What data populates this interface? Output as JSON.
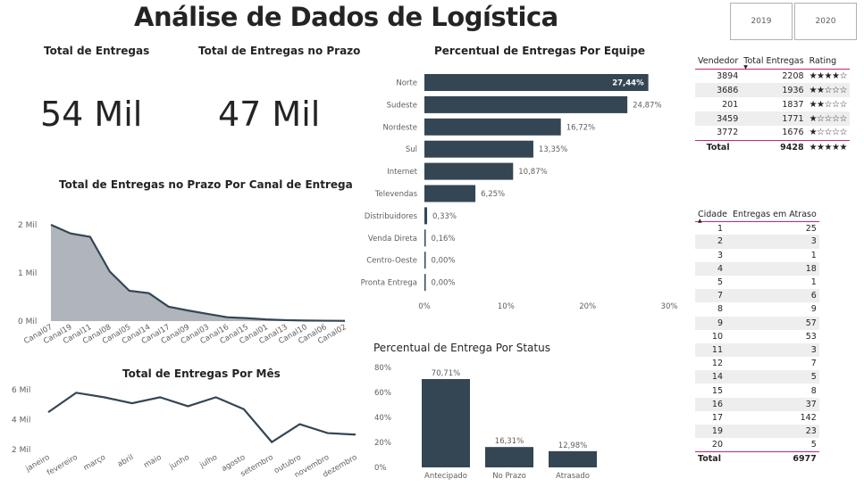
{
  "header": {
    "title": "Análise de Dados de Logística",
    "years": [
      "2019",
      "2020"
    ]
  },
  "cards": {
    "total_entregas": {
      "label": "Total de Entregas",
      "value": "54 Mil"
    },
    "entregas_prazo": {
      "label": "Total de Entregas no Prazo",
      "value": "47 Mil"
    }
  },
  "canal_chart": {
    "title": "Total de Entregas no Prazo Por Canal de Entrega"
  },
  "mes_chart": {
    "title": "Total de Entregas Por Mês"
  },
  "equipe_chart": {
    "title": "Percentual de Entregas Por Equipe"
  },
  "status_chart": {
    "title": "Percentual de Entrega Por Status"
  },
  "chart_data": [
    {
      "id": "canal",
      "type": "area",
      "title": "Total de Entregas no Prazo Por Canal de Entrega",
      "categories": [
        "Canal07",
        "Canal19",
        "Canal11",
        "Canal08",
        "Canal05",
        "Canal14",
        "Canal17",
        "Canal09",
        "Canal03",
        "Canal16",
        "Canal15",
        "Canal01",
        "Canal13",
        "Canal10",
        "Canal06",
        "Canal02"
      ],
      "values": [
        2000,
        1820,
        1750,
        1030,
        630,
        580,
        300,
        220,
        150,
        80,
        60,
        35,
        20,
        12,
        8,
        5
      ],
      "yticks": [
        "0 Mil",
        "1 Mil",
        "2 Mil"
      ],
      "ylim": [
        0,
        2000
      ],
      "color": "#b0b4bb"
    },
    {
      "id": "mes",
      "type": "line",
      "title": "Total de Entregas Por Mês",
      "categories": [
        "janeiro",
        "fevereiro",
        "março",
        "abril",
        "maio",
        "junho",
        "julho",
        "agosto",
        "setembro",
        "outubro",
        "novembro",
        "dezembro"
      ],
      "values": [
        4500,
        5800,
        5500,
        5100,
        5500,
        4900,
        5500,
        4700,
        2500,
        3700,
        3100,
        3000
      ],
      "yticks": [
        "2 Mil",
        "4 Mil",
        "6 Mil"
      ],
      "ylim": [
        2000,
        6000
      ],
      "color": "#344654"
    },
    {
      "id": "equipe",
      "type": "bar",
      "orientation": "horizontal",
      "title": "Percentual de Entregas Por Equipe",
      "categories": [
        "Norte",
        "Sudeste",
        "Nordeste",
        "Sul",
        "Internet",
        "Televendas",
        "Distribuidores",
        "Venda Direta",
        "Centro-Oeste",
        "Pronta Entrega"
      ],
      "values": [
        27.44,
        24.87,
        16.72,
        13.35,
        10.87,
        6.25,
        0.33,
        0.16,
        0.0,
        0.0
      ],
      "labels": [
        "27,44%",
        "24,87%",
        "16,72%",
        "13,35%",
        "10,87%",
        "6,25%",
        "0,33%",
        "0,16%",
        "0,00%",
        "0,00%"
      ],
      "xticks": [
        "0%",
        "10%",
        "20%",
        "30%"
      ],
      "xlim": [
        0,
        30
      ],
      "color": "#344654"
    },
    {
      "id": "status",
      "type": "bar",
      "title": "Percentual de Entrega Por Status",
      "categories": [
        "Antecipado",
        "No Prazo",
        "Atrasado"
      ],
      "values": [
        70.71,
        16.31,
        12.98
      ],
      "labels": [
        "70,71%",
        "16,31%",
        "12,98%"
      ],
      "yticks": [
        "0%",
        "20%",
        "40%",
        "60%",
        "80%"
      ],
      "ylim": [
        0,
        80
      ],
      "color": "#344654"
    }
  ],
  "vendedor_table": {
    "headers": [
      "Vendedor",
      "Total Entregas",
      "Rating"
    ],
    "rows": [
      [
        "3894",
        "2208",
        "★★★★☆"
      ],
      [
        "3686",
        "1936",
        "★★☆☆☆"
      ],
      [
        "201",
        "1837",
        "★★☆☆☆"
      ],
      [
        "3459",
        "1771",
        "★☆☆☆☆"
      ],
      [
        "3772",
        "1676",
        "★☆☆☆☆"
      ]
    ],
    "total": [
      "Total",
      "9428",
      "★★★★★"
    ]
  },
  "cidade_table": {
    "headers": [
      "Cidade",
      "Entregas em Atraso"
    ],
    "rows": [
      [
        "1",
        "25"
      ],
      [
        "2",
        "3"
      ],
      [
        "3",
        "1"
      ],
      [
        "4",
        "18"
      ],
      [
        "5",
        "1"
      ],
      [
        "7",
        "6"
      ],
      [
        "8",
        "9"
      ],
      [
        "9",
        "57"
      ],
      [
        "10",
        "53"
      ],
      [
        "11",
        "3"
      ],
      [
        "12",
        "7"
      ],
      [
        "14",
        "5"
      ],
      [
        "15",
        "8"
      ],
      [
        "16",
        "37"
      ],
      [
        "17",
        "142"
      ],
      [
        "19",
        "23"
      ],
      [
        "20",
        "5"
      ]
    ],
    "total": [
      "Total",
      "6977"
    ]
  }
}
